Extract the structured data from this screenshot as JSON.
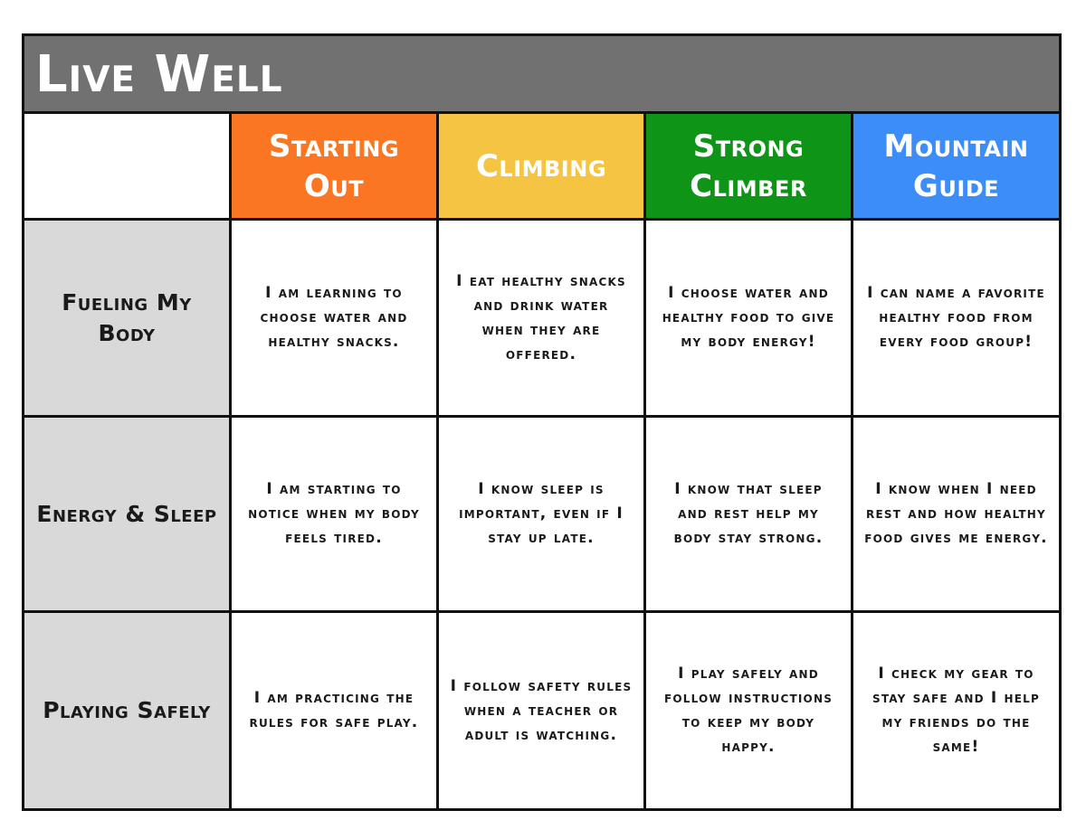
{
  "title": "Live Well",
  "colors": {
    "title_bar": "#717171",
    "row_header_bg": "#d9d9d9",
    "border": "#111111"
  },
  "levels": [
    {
      "label": "Starting Out",
      "color": "#fb7623"
    },
    {
      "label": "Climbing",
      "color": "#f5c443"
    },
    {
      "label": "Strong Climber",
      "color": "#0e9417"
    },
    {
      "label": "Mountain Guide",
      "color": "#3d8df8"
    }
  ],
  "rows": [
    {
      "label": "Fueling My Body",
      "cells": [
        "I am learning to choose water and healthy snacks.",
        "I eat healthy snacks and drink water when they are offered.",
        "I choose water and healthy food to give my body energy!",
        "I can name a favorite healthy food from every food group!"
      ]
    },
    {
      "label": "Energy & Sleep",
      "cells": [
        "I am starting to notice when my body feels tired.",
        "I know sleep is important, even if I stay up late.",
        "I know that sleep and rest help my body stay strong.",
        "I know when I need rest and how healthy food gives me energy."
      ]
    },
    {
      "label": "Playing Safely",
      "cells": [
        "I am practicing the rules for safe play.",
        "I follow safety rules when a teacher or adult is watching.",
        "I play safely and follow instructions to keep my body happy.",
        "I check my gear to stay safe and I help my friends do the same!"
      ]
    }
  ]
}
